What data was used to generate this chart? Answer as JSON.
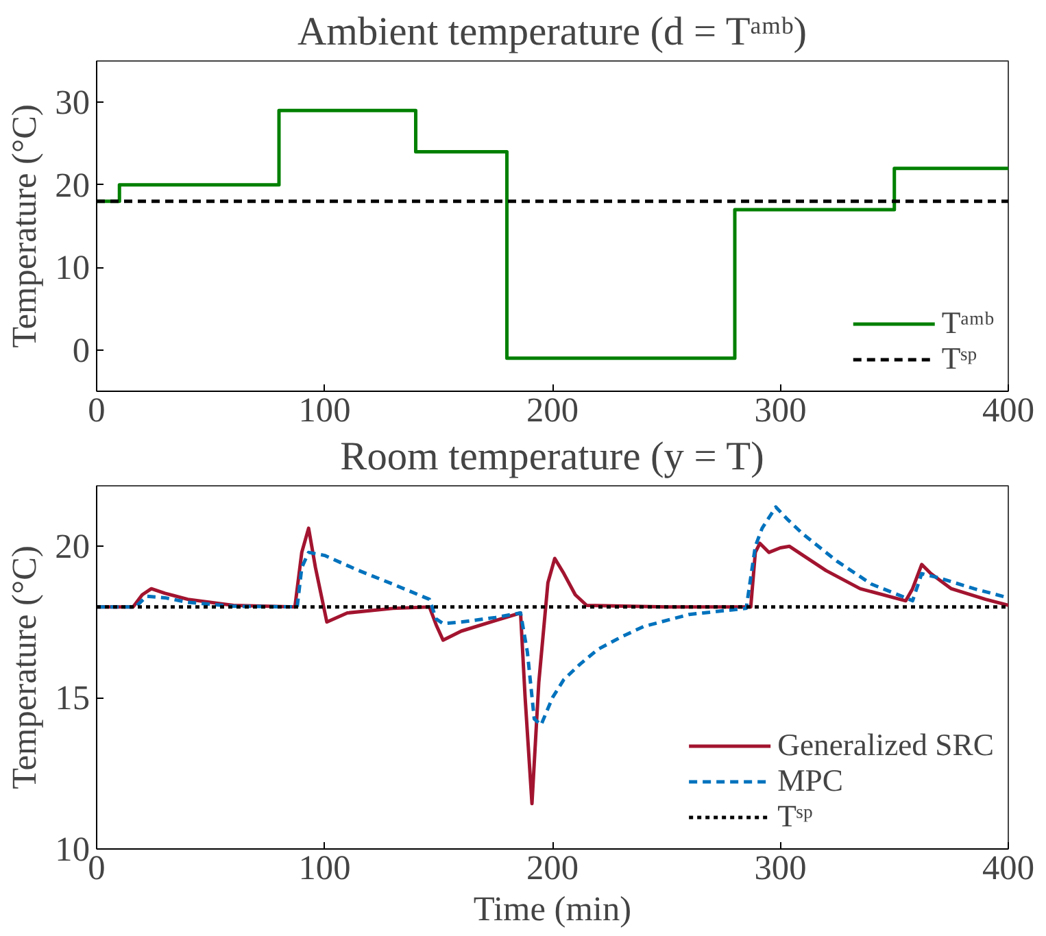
{
  "chart_data": [
    {
      "type": "line",
      "title": "Ambient temperature (d = Tᵃᵐᵇ)",
      "ylabel": "Temperature (°C)",
      "xlim": [
        0,
        400
      ],
      "xticks": [
        0,
        100,
        200,
        300,
        400
      ],
      "ylim": [
        -5,
        35
      ],
      "yticks": [
        0,
        10,
        20,
        30
      ],
      "grid": false,
      "legend": "bottom right",
      "series": [
        {
          "name": "Tᵃᵐᵇ",
          "type": "step",
          "color": "#008000",
          "line_style": "solid",
          "x": [
            0,
            10,
            80,
            140,
            180,
            280,
            350,
            400
          ],
          "values": [
            18,
            20,
            29,
            24,
            -1,
            17,
            22,
            22
          ]
        },
        {
          "name": "Tˢᵖ",
          "type": "line",
          "color": "#000000",
          "line_style": "dashed",
          "x": [
            0,
            400
          ],
          "values": [
            18,
            18
          ]
        }
      ]
    },
    {
      "type": "line",
      "title": "Room temperature (y = T)",
      "xlabel": "Time (min)",
      "ylabel": "Temperature (°C)",
      "xlim": [
        0,
        400
      ],
      "xticks": [
        0,
        100,
        200,
        300,
        400
      ],
      "ylim": [
        10,
        22
      ],
      "yticks": [
        10,
        15,
        20
      ],
      "grid": false,
      "legend": "bottom right",
      "series": [
        {
          "name": "Generalized SRC",
          "color": "#a2142f",
          "line_style": "solid",
          "x": [
            0,
            16,
            20,
            24,
            30,
            40,
            60,
            87,
            90,
            93,
            96,
            101,
            110,
            130,
            146,
            149,
            152,
            160,
            175,
            186,
            188,
            191,
            194,
            198,
            201,
            205,
            210,
            215,
            250,
            287,
            289,
            291,
            295,
            300,
            304,
            310,
            320,
            335,
            355,
            358,
            362,
            366,
            375,
            390,
            400
          ],
          "values": [
            18,
            18,
            18.4,
            18.6,
            18.45,
            18.25,
            18.05,
            18,
            19.8,
            20.6,
            19.3,
            17.5,
            17.8,
            17.95,
            18,
            17.4,
            16.9,
            17.2,
            17.55,
            17.8,
            15,
            11.5,
            15.5,
            18.8,
            19.6,
            19.1,
            18.4,
            18.05,
            18,
            18,
            19.8,
            20.1,
            19.8,
            19.95,
            20,
            19.7,
            19.2,
            18.6,
            18.2,
            18.6,
            19.4,
            19.1,
            18.6,
            18.25,
            18.05
          ]
        },
        {
          "name": "MPC",
          "color": "#0072bd",
          "line_style": "dashed",
          "x": [
            0,
            17,
            22,
            30,
            40,
            60,
            88,
            90,
            93,
            100,
            115,
            130,
            146,
            149,
            152,
            160,
            175,
            186,
            189,
            192,
            195,
            200,
            205,
            212,
            220,
            230,
            240,
            260,
            285,
            289,
            292,
            298,
            303,
            310,
            325,
            340,
            355,
            358,
            362,
            370,
            385,
            400
          ],
          "values": [
            18,
            18,
            18.35,
            18.3,
            18.15,
            18.02,
            18,
            19.3,
            19.8,
            19.7,
            19.2,
            18.75,
            18.25,
            17.6,
            17.45,
            17.5,
            17.65,
            17.8,
            16.5,
            14.3,
            14.1,
            15,
            15.6,
            16.1,
            16.6,
            17,
            17.35,
            17.75,
            17.95,
            20,
            20.6,
            21.3,
            20.9,
            20.4,
            19.5,
            18.75,
            18.3,
            18.2,
            19.1,
            18.95,
            18.6,
            18.3
          ]
        },
        {
          "name": "Tˢᵖ",
          "color": "#000000",
          "line_style": "dotted",
          "x": [
            0,
            400
          ],
          "values": [
            18,
            18
          ]
        }
      ]
    }
  ]
}
